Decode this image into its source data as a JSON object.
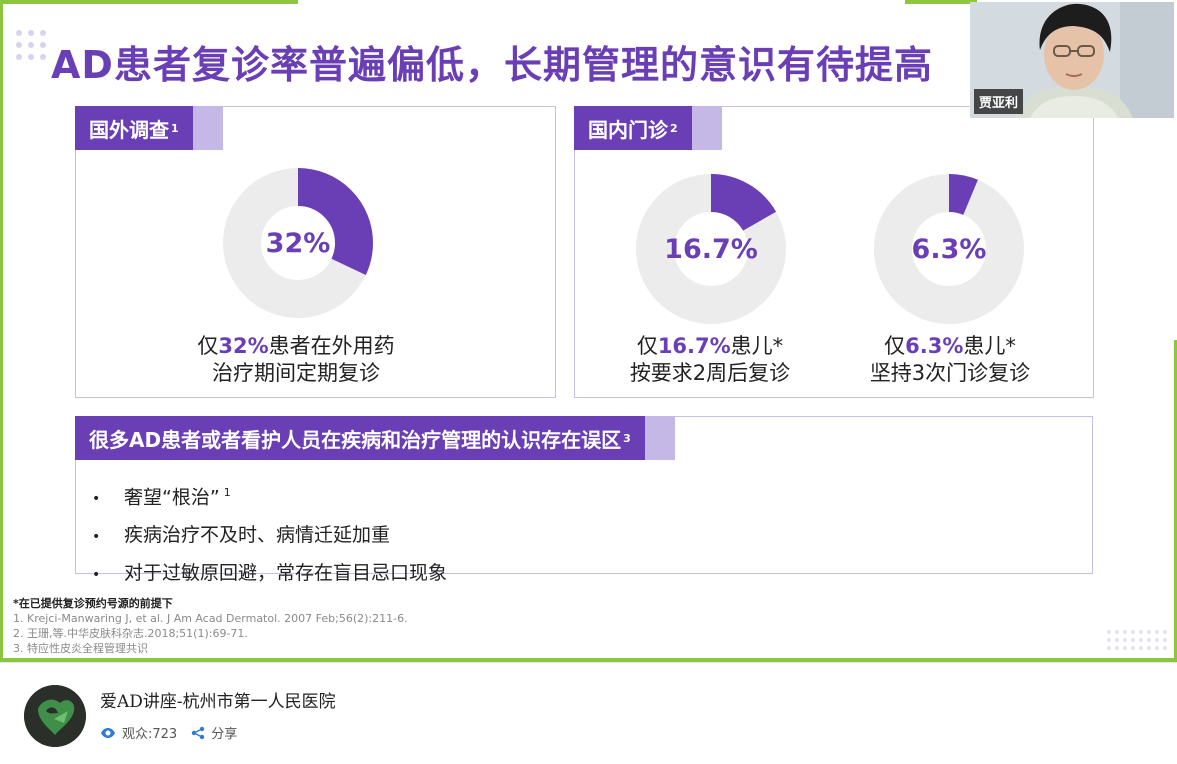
{
  "slide": {
    "title": "AD患者复诊率普遍偏低，长期管理的意识有待提高",
    "foreign": {
      "tab_label": "国外调查",
      "tab_sup": "1",
      "percent_label": "32%",
      "percent_value": 32,
      "caption_pre": "仅",
      "caption_hl": "32%",
      "caption_post": "患者在外用药",
      "caption_line2": "治疗期间定期复诊"
    },
    "domestic": {
      "tab_label": "国内门诊",
      "tab_sup": "2",
      "left": {
        "percent_label": "16.7%",
        "percent_value": 16.7,
        "caption_pre": "仅",
        "caption_hl": "16.7%",
        "caption_post": "患儿*",
        "caption_line2": "按要求2周后复诊"
      },
      "right": {
        "percent_label": "6.3%",
        "percent_value": 6.3,
        "caption_pre": "仅",
        "caption_hl": "6.3%",
        "caption_post": "患儿*",
        "caption_line2": "坚持3次门诊复诊"
      }
    },
    "misconception": {
      "tab_label": "很多AD患者或者看护人员在疾病和治疗管理的认识存在误区",
      "tab_sup": "3",
      "bullet": "•",
      "items": [
        {
          "text": "奢望“根治”",
          "sup": "1"
        },
        {
          "text": "疾病治疗不及时、病情迁延加重",
          "sup": ""
        },
        {
          "text": "对于过敏原回避，常存在盲目忌口现象",
          "sup": ""
        }
      ]
    },
    "footnotes": {
      "note": "*在已提供复诊预约号源的前提下",
      "refs": [
        "1. Krejci-Manwaring J, et al. J Am Acad Dermatol. 2007 Feb;56(2):211-6.",
        "2. 王珊,等.中华皮肤科杂志.2018;51(1):69-71.",
        "3. 特应性皮炎全程管理共识"
      ]
    },
    "colors": {
      "accent": "#6a3fb5",
      "accent_light": "#c6b8e6",
      "donut_track": "#ececec",
      "border_green": "#8cc640"
    }
  },
  "webcam": {
    "name": "贾亚利"
  },
  "channel": {
    "title": "爱AD讲座-杭州市第一人民医院",
    "viewers_label": "观众:723",
    "share_label": "分享",
    "icons": {
      "viewers": "eye-icon",
      "share": "share-icon"
    }
  }
}
